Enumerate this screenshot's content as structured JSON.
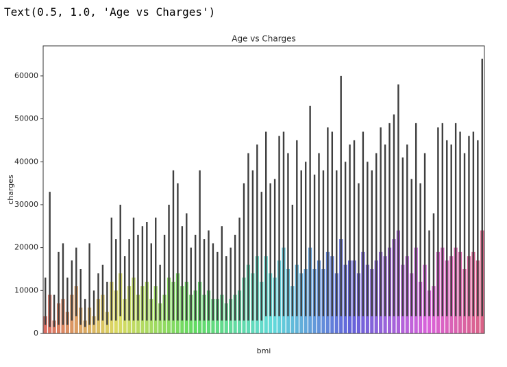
{
  "output_text": "Text(0.5, 1.0, 'Age vs Charges')",
  "chart_data": {
    "type": "bar",
    "title": "Age vs Charges",
    "x_label": "bmi",
    "y_label": "charges",
    "palette": "husl",
    "error_color": "#3f3f3f",
    "categories": [
      null,
      null,
      null,
      null,
      null,
      null,
      null,
      null,
      null,
      null,
      null,
      null,
      null,
      null,
      null,
      null,
      null,
      null,
      null,
      null,
      null,
      null,
      null,
      null,
      null,
      null,
      null,
      null,
      null,
      null,
      null,
      null,
      null,
      null,
      null,
      null,
      null,
      null,
      null,
      null,
      null,
      null,
      null,
      null,
      null,
      null,
      null,
      null,
      null,
      null,
      null,
      null,
      null,
      null,
      null,
      null,
      null,
      null,
      null,
      null,
      null,
      null,
      null,
      null,
      null,
      null,
      null,
      null,
      null,
      null,
      null,
      null,
      null,
      null,
      null,
      null,
      null,
      null,
      null,
      null,
      null,
      null,
      null,
      null,
      null,
      null,
      null,
      null,
      null,
      null,
      null,
      null,
      null,
      null,
      null,
      null,
      null,
      null,
      null,
      null
    ],
    "values": [
      4000,
      9000,
      3000,
      7000,
      8000,
      5000,
      9000,
      11000,
      6000,
      3000,
      6000,
      4000,
      8000,
      9000,
      5000,
      12000,
      10000,
      14000,
      8000,
      11000,
      13000,
      9000,
      11000,
      12000,
      8000,
      11000,
      7000,
      9000,
      13000,
      12000,
      14000,
      11000,
      12000,
      9000,
      10000,
      12000,
      9000,
      10000,
      8000,
      8000,
      9000,
      7000,
      8000,
      9000,
      10000,
      13000,
      16000,
      14000,
      18000,
      12000,
      18000,
      14000,
      13000,
      17000,
      20000,
      15000,
      11000,
      16000,
      14000,
      15000,
      20000,
      15000,
      17000,
      15000,
      19000,
      18000,
      14000,
      22000,
      16000,
      17000,
      17000,
      14000,
      19000,
      16000,
      15000,
      17000,
      19000,
      18000,
      20000,
      22000,
      24000,
      16000,
      18000,
      14000,
      20000,
      12000,
      16000,
      10000,
      11000,
      19000,
      20000,
      17000,
      18000,
      20000,
      19000,
      15000,
      18000,
      19000,
      17000,
      24000
    ],
    "ci_low": [
      2000,
      1500,
      1500,
      2000,
      2000,
      2000,
      3000,
      4000,
      2000,
      1500,
      2000,
      2000,
      3000,
      3000,
      2000,
      3000,
      3000,
      4000,
      3000,
      3000,
      3000,
      3000,
      3000,
      3000,
      3000,
      3000,
      3000,
      3000,
      3000,
      3000,
      3000,
      3000,
      3000,
      3000,
      3000,
      3000,
      3000,
      3000,
      3000,
      3000,
      3000,
      3000,
      3000,
      3000,
      3000,
      3000,
      3000,
      3000,
      3000,
      3000,
      4000,
      4000,
      4000,
      4000,
      4000,
      4000,
      4000,
      4000,
      4000,
      4000,
      4000,
      4000,
      4000,
      4000,
      4000,
      4000,
      4000,
      4000,
      4000,
      4000,
      4000,
      4000,
      4000,
      4000,
      4000,
      4000,
      4000,
      4000,
      4000,
      4000,
      4000,
      4000,
      4000,
      4000,
      4000,
      4000,
      4000,
      4000,
      4000,
      4000,
      4000,
      4000,
      4000,
      4000,
      4000,
      4000,
      4000,
      4000,
      4000,
      4000
    ],
    "ci_high": [
      13000,
      33000,
      9000,
      19000,
      21000,
      13000,
      17000,
      20000,
      15000,
      8000,
      21000,
      10000,
      14000,
      16000,
      12000,
      27000,
      22000,
      30000,
      18000,
      22000,
      27000,
      23000,
      25000,
      26000,
      21000,
      27000,
      16000,
      23000,
      30000,
      38000,
      35000,
      25000,
      28000,
      20000,
      23000,
      38000,
      22000,
      24000,
      21000,
      19000,
      25000,
      18000,
      20000,
      23000,
      27000,
      35000,
      42000,
      38000,
      44000,
      33000,
      47000,
      35000,
      36000,
      46000,
      47000,
      42000,
      30000,
      45000,
      38000,
      40000,
      53000,
      37000,
      42000,
      38000,
      48000,
      47000,
      38000,
      60000,
      40000,
      44000,
      45000,
      35000,
      47000,
      40000,
      38000,
      42000,
      48000,
      44000,
      49000,
      51000,
      58000,
      41000,
      44000,
      36000,
      49000,
      35000,
      42000,
      24000,
      28000,
      48000,
      49000,
      45000,
      44000,
      49000,
      47000,
      42000,
      46000,
      47000,
      45000,
      64000
    ],
    "ylim": [
      0,
      67000
    ],
    "yticks": [
      0,
      10000,
      20000,
      30000,
      40000,
      50000,
      60000
    ]
  }
}
